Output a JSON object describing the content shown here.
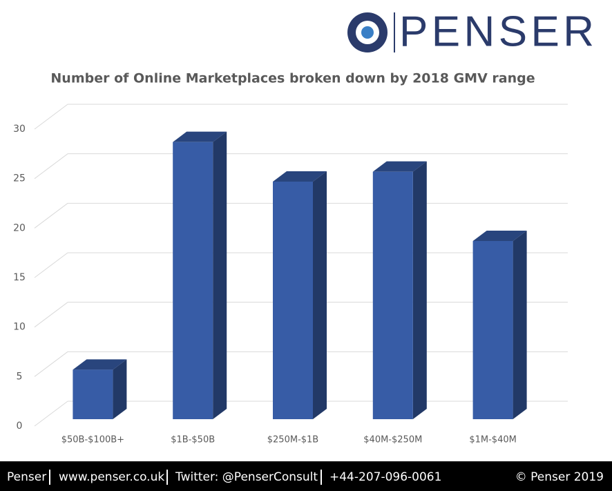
{
  "brand": "PENSER",
  "chart_data": {
    "type": "bar3d",
    "title": "Number of Online Marketplaces broken down by 2018 GMV range",
    "categories": [
      "$50B-$100B+",
      "$1B-$50B",
      "$250M-$1B",
      "$40M-$250M",
      "$1M-$40M"
    ],
    "values": [
      5,
      28,
      24,
      25,
      18
    ],
    "color": "#375ca6",
    "ylim": [
      0,
      30
    ],
    "yticks": [
      0,
      5,
      10,
      15,
      20,
      25,
      30
    ],
    "grid": true
  },
  "footer": {
    "items": [
      "Penser",
      "www.penser.co.uk",
      "Twitter: @PenserConsult",
      "+44-207-096-0061"
    ],
    "copyright": "© Penser 2019"
  }
}
